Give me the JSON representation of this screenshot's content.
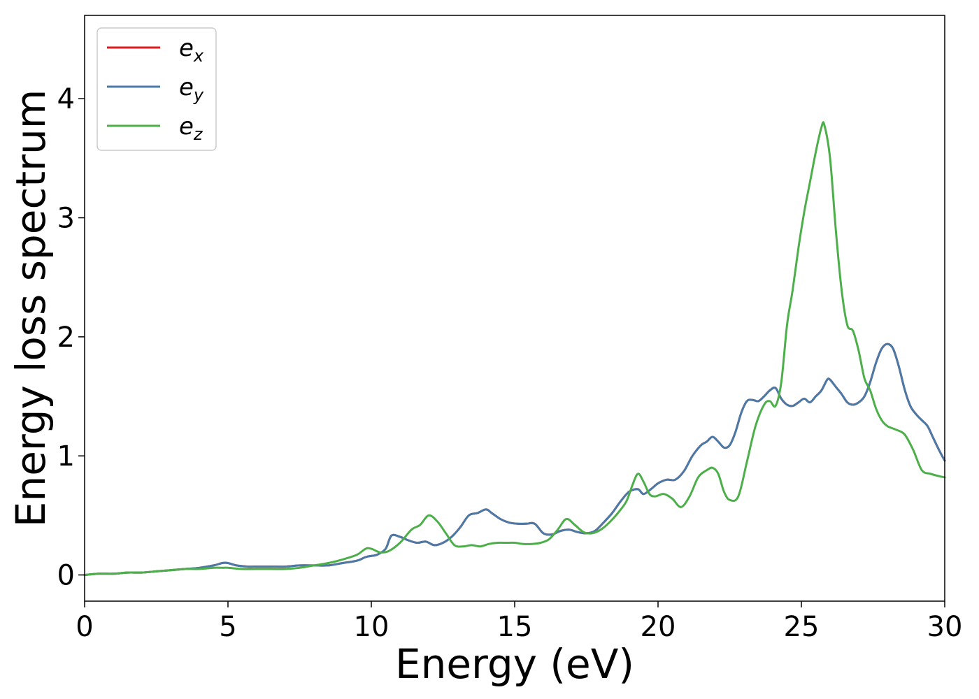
{
  "chart_data": {
    "type": "line",
    "title": "",
    "xlabel": "Energy (eV)",
    "ylabel": "Energy loss spectrum",
    "xlim": [
      0,
      30
    ],
    "ylim": [
      -0.22,
      4.7
    ],
    "xticks": [
      0,
      5,
      10,
      15,
      20,
      25,
      30
    ],
    "yticks": [
      0,
      1,
      2,
      3,
      4
    ],
    "grid": false,
    "legend_position": "top-left",
    "series": [
      {
        "name": "e_x",
        "legend_base": "e",
        "legend_sub": "x",
        "color": "#e41a1c",
        "x": [
          0,
          0.5,
          1,
          1.5,
          2,
          2.5,
          3,
          3.5,
          4,
          4.5,
          4.8,
          5,
          5.3,
          5.7,
          6,
          6.5,
          7,
          7.5,
          8,
          8.5,
          9,
          9.5,
          9.8,
          10,
          10.2,
          10.5,
          10.7,
          11,
          11.3,
          11.6,
          11.9,
          12.2,
          12.5,
          12.8,
          13.1,
          13.4,
          13.7,
          14,
          14.2,
          14.5,
          14.8,
          15.1,
          15.4,
          15.7,
          16,
          16.3,
          16.6,
          16.9,
          17.2,
          17.5,
          17.8,
          18.1,
          18.4,
          18.7,
          19,
          19.3,
          19.5,
          19.8,
          20,
          20.3,
          20.6,
          20.9,
          21.2,
          21.5,
          21.7,
          21.9,
          22.1,
          22.3,
          22.5,
          22.7,
          22.9,
          23.1,
          23.3,
          23.5,
          23.7,
          23.9,
          24.1,
          24.3,
          24.5,
          24.7,
          24.9,
          25.1,
          25.3,
          25.5,
          25.7,
          25.9,
          26,
          26.2,
          26.4,
          26.6,
          26.8,
          27,
          27.2,
          27.4,
          27.6,
          27.8,
          28,
          28.2,
          28.4,
          28.6,
          28.8,
          29,
          29.2,
          29.4,
          29.6,
          29.8,
          30
        ],
        "y": [
          0,
          0.01,
          0.01,
          0.02,
          0.02,
          0.03,
          0.04,
          0.05,
          0.06,
          0.08,
          0.1,
          0.1,
          0.08,
          0.07,
          0.07,
          0.07,
          0.07,
          0.08,
          0.08,
          0.08,
          0.1,
          0.12,
          0.15,
          0.16,
          0.17,
          0.22,
          0.33,
          0.32,
          0.29,
          0.27,
          0.28,
          0.25,
          0.27,
          0.32,
          0.4,
          0.5,
          0.52,
          0.55,
          0.52,
          0.47,
          0.44,
          0.43,
          0.43,
          0.43,
          0.35,
          0.34,
          0.37,
          0.38,
          0.36,
          0.35,
          0.37,
          0.44,
          0.52,
          0.62,
          0.7,
          0.72,
          0.68,
          0.73,
          0.77,
          0.8,
          0.8,
          0.87,
          1.0,
          1.09,
          1.12,
          1.16,
          1.12,
          1.07,
          1.09,
          1.2,
          1.36,
          1.46,
          1.47,
          1.46,
          1.5,
          1.55,
          1.57,
          1.48,
          1.43,
          1.42,
          1.45,
          1.48,
          1.45,
          1.5,
          1.55,
          1.64,
          1.64,
          1.58,
          1.52,
          1.45,
          1.43,
          1.45,
          1.5,
          1.62,
          1.78,
          1.9,
          1.94,
          1.9,
          1.75,
          1.56,
          1.42,
          1.35,
          1.3,
          1.25,
          1.15,
          1.05,
          0.96
        ]
      },
      {
        "name": "e_y",
        "legend_base": "e",
        "legend_sub": "y",
        "color": "#4a7aa8",
        "x": [
          0,
          0.5,
          1,
          1.5,
          2,
          2.5,
          3,
          3.5,
          4,
          4.5,
          4.8,
          5,
          5.3,
          5.7,
          6,
          6.5,
          7,
          7.5,
          8,
          8.5,
          9,
          9.5,
          9.8,
          10,
          10.2,
          10.5,
          10.7,
          11,
          11.3,
          11.6,
          11.9,
          12.2,
          12.5,
          12.8,
          13.1,
          13.4,
          13.7,
          14,
          14.2,
          14.5,
          14.8,
          15.1,
          15.4,
          15.7,
          16,
          16.3,
          16.6,
          16.9,
          17.2,
          17.5,
          17.8,
          18.1,
          18.4,
          18.7,
          19,
          19.3,
          19.5,
          19.8,
          20,
          20.3,
          20.6,
          20.9,
          21.2,
          21.5,
          21.7,
          21.9,
          22.1,
          22.3,
          22.5,
          22.7,
          22.9,
          23.1,
          23.3,
          23.5,
          23.7,
          23.9,
          24.1,
          24.3,
          24.5,
          24.7,
          24.9,
          25.1,
          25.3,
          25.5,
          25.7,
          25.9,
          26,
          26.2,
          26.4,
          26.6,
          26.8,
          27,
          27.2,
          27.4,
          27.6,
          27.8,
          28,
          28.2,
          28.4,
          28.6,
          28.8,
          29,
          29.2,
          29.4,
          29.6,
          29.8,
          30
        ],
        "y": [
          0,
          0.01,
          0.01,
          0.02,
          0.02,
          0.03,
          0.04,
          0.05,
          0.06,
          0.08,
          0.1,
          0.1,
          0.08,
          0.07,
          0.07,
          0.07,
          0.07,
          0.08,
          0.08,
          0.08,
          0.1,
          0.12,
          0.15,
          0.16,
          0.17,
          0.22,
          0.33,
          0.32,
          0.29,
          0.27,
          0.28,
          0.25,
          0.27,
          0.32,
          0.4,
          0.5,
          0.52,
          0.55,
          0.52,
          0.47,
          0.44,
          0.43,
          0.43,
          0.43,
          0.35,
          0.34,
          0.37,
          0.38,
          0.36,
          0.35,
          0.37,
          0.44,
          0.52,
          0.62,
          0.7,
          0.72,
          0.68,
          0.73,
          0.77,
          0.8,
          0.8,
          0.87,
          1.0,
          1.09,
          1.12,
          1.16,
          1.12,
          1.07,
          1.09,
          1.2,
          1.36,
          1.46,
          1.47,
          1.46,
          1.5,
          1.55,
          1.57,
          1.48,
          1.43,
          1.42,
          1.45,
          1.48,
          1.45,
          1.5,
          1.55,
          1.64,
          1.64,
          1.58,
          1.52,
          1.45,
          1.43,
          1.45,
          1.5,
          1.62,
          1.78,
          1.9,
          1.94,
          1.9,
          1.75,
          1.56,
          1.42,
          1.35,
          1.3,
          1.25,
          1.15,
          1.05,
          0.96
        ]
      },
      {
        "name": "e_z",
        "legend_base": "e",
        "legend_sub": "z",
        "color": "#4daf4a",
        "x": [
          0,
          0.5,
          1,
          1.5,
          2,
          2.5,
          3,
          3.5,
          4,
          4.5,
          4.8,
          5,
          5.5,
          6,
          6.5,
          7,
          7.5,
          8,
          8.5,
          9,
          9.5,
          9.8,
          10,
          10.3,
          10.6,
          11,
          11.4,
          11.7,
          12,
          12.3,
          12.6,
          12.9,
          13.2,
          13.5,
          13.8,
          14.1,
          14.4,
          14.7,
          15,
          15.3,
          15.6,
          15.9,
          16.2,
          16.5,
          16.8,
          17.1,
          17.4,
          17.7,
          18,
          18.3,
          18.6,
          18.9,
          19.1,
          19.3,
          19.5,
          19.7,
          19.9,
          20.2,
          20.5,
          20.8,
          21.1,
          21.4,
          21.7,
          21.9,
          22.1,
          22.3,
          22.5,
          22.8,
          23.1,
          23.4,
          23.7,
          23.9,
          24.1,
          24.3,
          24.5,
          24.7,
          24.9,
          25.1,
          25.3,
          25.5,
          25.7,
          25.8,
          26,
          26.2,
          26.4,
          26.6,
          26.8,
          27,
          27.2,
          27.4,
          27.6,
          27.8,
          28,
          28.3,
          28.6,
          28.9,
          29.2,
          29.5,
          29.8,
          30
        ],
        "y": [
          0,
          0.01,
          0.01,
          0.02,
          0.02,
          0.03,
          0.04,
          0.05,
          0.05,
          0.06,
          0.06,
          0.06,
          0.05,
          0.05,
          0.05,
          0.05,
          0.06,
          0.08,
          0.1,
          0.13,
          0.17,
          0.22,
          0.22,
          0.19,
          0.2,
          0.27,
          0.38,
          0.42,
          0.5,
          0.45,
          0.35,
          0.25,
          0.24,
          0.25,
          0.24,
          0.26,
          0.27,
          0.27,
          0.27,
          0.26,
          0.26,
          0.27,
          0.3,
          0.38,
          0.47,
          0.42,
          0.36,
          0.35,
          0.38,
          0.44,
          0.52,
          0.62,
          0.75,
          0.85,
          0.78,
          0.68,
          0.66,
          0.68,
          0.64,
          0.57,
          0.66,
          0.82,
          0.88,
          0.9,
          0.85,
          0.7,
          0.63,
          0.66,
          0.95,
          1.25,
          1.43,
          1.46,
          1.42,
          1.62,
          2.1,
          2.4,
          2.75,
          3.05,
          3.3,
          3.55,
          3.76,
          3.78,
          3.5,
          2.9,
          2.4,
          2.1,
          2.05,
          1.88,
          1.65,
          1.55,
          1.4,
          1.3,
          1.25,
          1.22,
          1.18,
          1.05,
          0.88,
          0.85,
          0.83,
          0.82
        ]
      }
    ]
  }
}
